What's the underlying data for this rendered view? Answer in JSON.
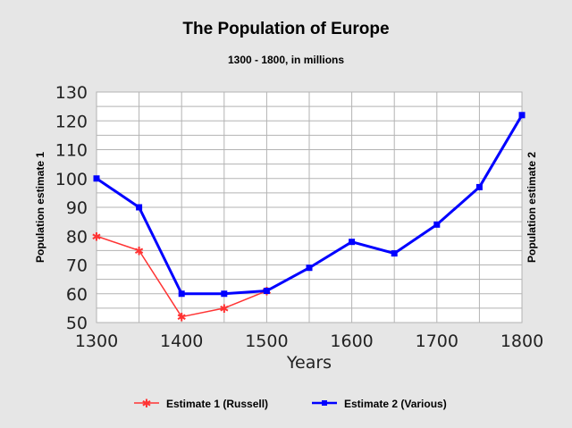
{
  "chart_data": {
    "type": "line",
    "title": "The Population of Europe",
    "subtitle": "1300 - 1800, in millions",
    "xlabel": "Years",
    "ylabel_left": "Population estimate 1",
    "ylabel_right": "Population estimate 2",
    "xlim": [
      1300,
      1800
    ],
    "ylim": [
      50,
      130
    ],
    "x_ticks": [
      "1300",
      "1400",
      "1500",
      "1600",
      "1700",
      "1800"
    ],
    "y_ticks": [
      "50",
      "60",
      "70",
      "80",
      "90",
      "100",
      "110",
      "120",
      "130"
    ],
    "grid": true,
    "legend_position": "bottom",
    "series": [
      {
        "name": "Estimate 1 (Russell)",
        "color": "#ff3333",
        "marker": "star",
        "x": [
          1300,
          1350,
          1400,
          1450,
          1500
        ],
        "values": [
          80,
          75,
          52,
          55,
          61
        ]
      },
      {
        "name": "Estimate 2 (Various)",
        "color": "#0000ff",
        "marker": "square",
        "x": [
          1300,
          1350,
          1400,
          1450,
          1500,
          1550,
          1600,
          1650,
          1700,
          1750,
          1800
        ],
        "values": [
          100,
          90,
          60,
          60,
          61,
          69,
          78,
          74,
          84,
          97,
          122
        ]
      }
    ]
  }
}
